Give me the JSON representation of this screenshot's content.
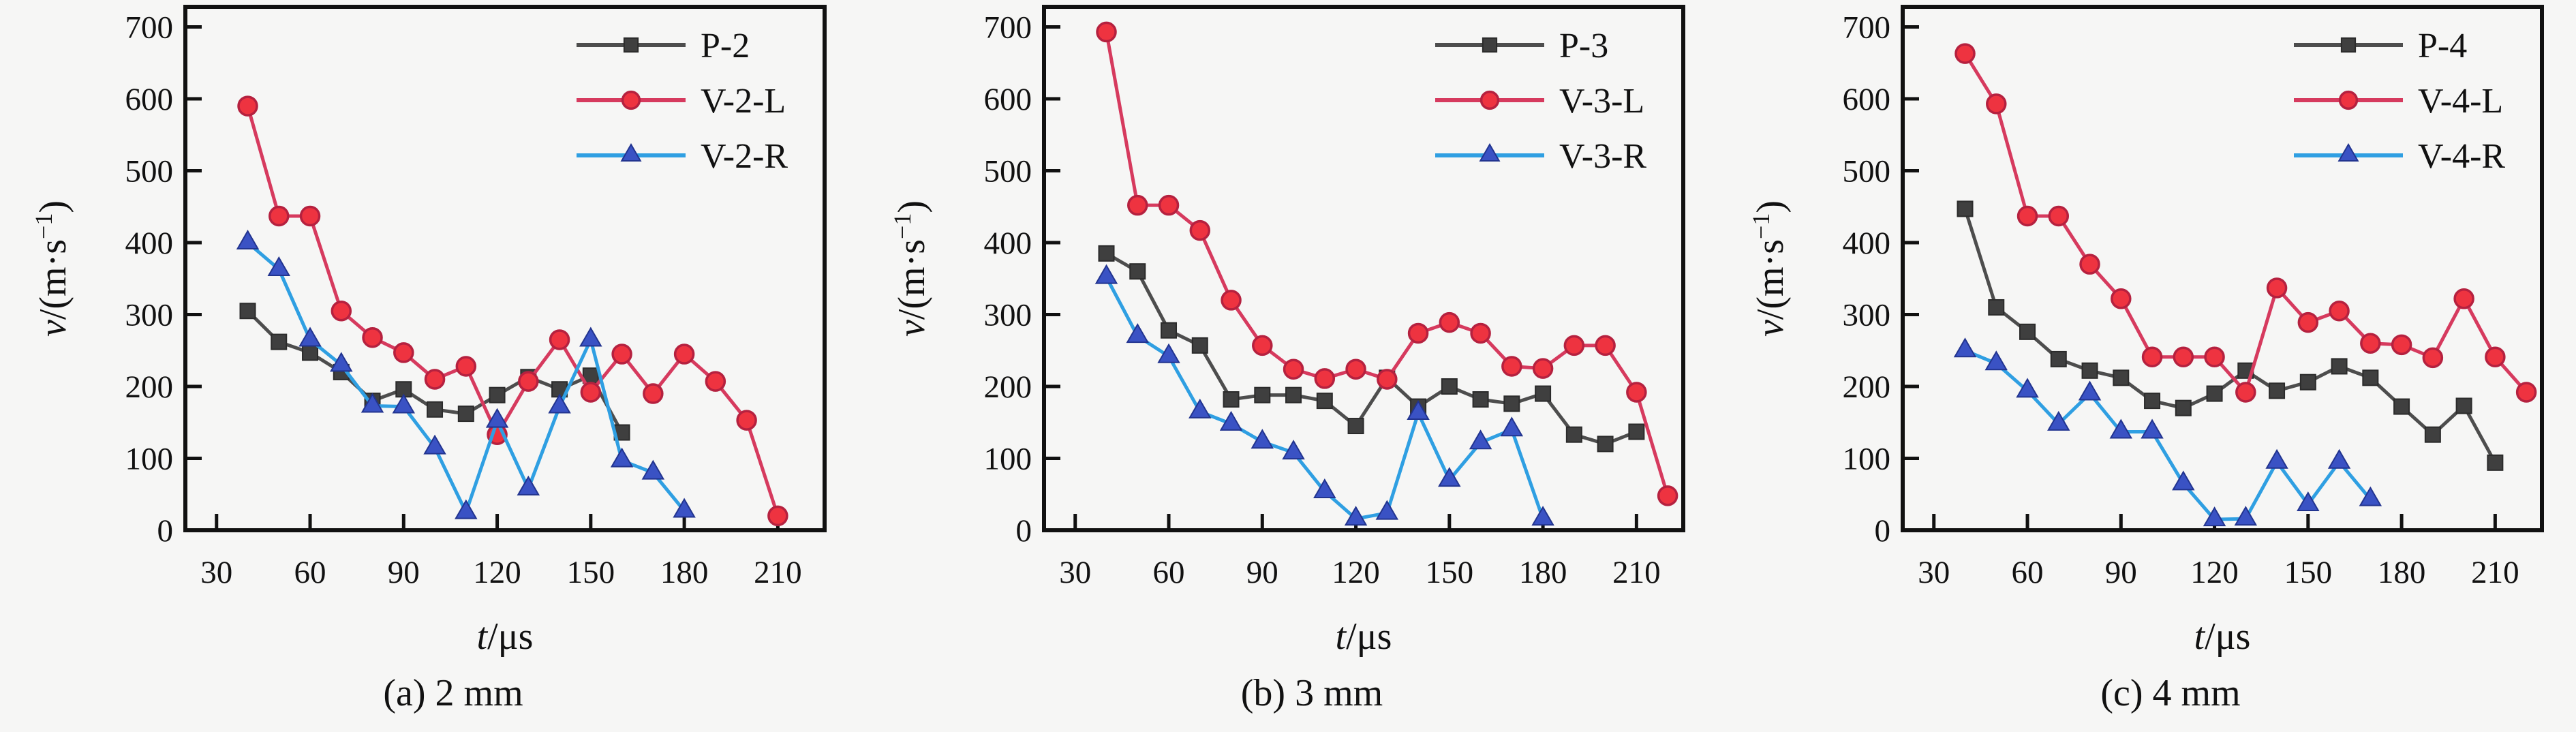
{
  "figure": {
    "background": "#f6f6f5",
    "axis_color": "#111111",
    "captions": [
      "(a) 2 mm",
      "(b) 3 mm",
      "(c) 4 mm"
    ]
  },
  "chart_data": [
    {
      "type": "line",
      "title": "(a) 2 mm",
      "xlabel": "t/μs",
      "ylabel": "v/(m·s⁻¹)",
      "xlim": [
        20,
        225
      ],
      "ylim": [
        0,
        728
      ],
      "x_ticks": [
        30,
        60,
        90,
        120,
        150,
        180,
        210
      ],
      "y_ticks": [
        0,
        100,
        200,
        300,
        400,
        500,
        600,
        700
      ],
      "grid": false,
      "legend_position": "top-right",
      "series": [
        {
          "name": "P-2",
          "marker": "square",
          "line_color": "#4d4d4d",
          "marker_color": "#3f3f3f",
          "marker_edge": "#2b2b2b",
          "x": [
            40,
            50,
            60,
            70,
            80,
            90,
            100,
            110,
            120,
            130,
            140,
            150,
            160
          ],
          "values": [
            305,
            262,
            247,
            220,
            180,
            196,
            168,
            162,
            188,
            213,
            196,
            215,
            136
          ]
        },
        {
          "name": "V-2-L",
          "marker": "circle",
          "line_color": "#d63a5e",
          "marker_color": "#ee3340",
          "marker_edge": "#b5213f",
          "x": [
            40,
            50,
            60,
            70,
            80,
            90,
            100,
            110,
            120,
            130,
            140,
            150,
            160,
            170,
            180,
            190,
            200,
            210
          ],
          "values": [
            590,
            437,
            437,
            305,
            268,
            247,
            210,
            228,
            133,
            207,
            265,
            192,
            245,
            190,
            245,
            207,
            153,
            20
          ]
        },
        {
          "name": "V-2-R",
          "marker": "triangle",
          "line_color": "#2f9fe2",
          "marker_color": "#3a52c4",
          "marker_edge": "#22348f",
          "x": [
            40,
            50,
            60,
            70,
            80,
            90,
            100,
            110,
            120,
            130,
            140,
            150,
            160,
            170,
            180
          ],
          "values": [
            400,
            363,
            265,
            230,
            173,
            172,
            115,
            25,
            152,
            58,
            172,
            265,
            97,
            80,
            27
          ]
        }
      ]
    },
    {
      "type": "line",
      "title": "(b) 3 mm",
      "xlabel": "t/μs",
      "ylabel": "v/(m·s⁻¹)",
      "xlim": [
        20,
        225
      ],
      "ylim": [
        0,
        728
      ],
      "x_ticks": [
        30,
        60,
        90,
        120,
        150,
        180,
        210
      ],
      "y_ticks": [
        0,
        100,
        200,
        300,
        400,
        500,
        600,
        700
      ],
      "grid": false,
      "legend_position": "top-right",
      "series": [
        {
          "name": "P-3",
          "marker": "square",
          "line_color": "#4d4d4d",
          "marker_color": "#3f3f3f",
          "marker_edge": "#2b2b2b",
          "x": [
            40,
            50,
            60,
            70,
            80,
            90,
            100,
            110,
            120,
            130,
            140,
            150,
            160,
            170,
            180,
            190,
            200,
            210
          ],
          "values": [
            385,
            360,
            278,
            257,
            182,
            188,
            188,
            180,
            145,
            212,
            172,
            200,
            182,
            176,
            190,
            133,
            120,
            137
          ]
        },
        {
          "name": "V-3-L",
          "marker": "circle",
          "line_color": "#d63a5e",
          "marker_color": "#ee3340",
          "marker_edge": "#b5213f",
          "x": [
            40,
            50,
            60,
            70,
            80,
            90,
            100,
            110,
            120,
            130,
            140,
            150,
            160,
            170,
            180,
            190,
            200,
            210,
            220
          ],
          "values": [
            693,
            452,
            452,
            417,
            320,
            257,
            224,
            211,
            224,
            210,
            274,
            289,
            274,
            228,
            225,
            257,
            257,
            192,
            48
          ]
        },
        {
          "name": "V-3-R",
          "marker": "triangle",
          "line_color": "#2f9fe2",
          "marker_color": "#3a52c4",
          "marker_edge": "#22348f",
          "x": [
            40,
            50,
            60,
            70,
            80,
            90,
            100,
            110,
            120,
            130,
            140,
            150,
            160,
            170,
            180
          ],
          "values": [
            352,
            270,
            242,
            165,
            148,
            123,
            108,
            54,
            16,
            24,
            163,
            70,
            122,
            140,
            16
          ]
        }
      ]
    },
    {
      "type": "line",
      "title": "(c) 4 mm",
      "xlabel": "t/μs",
      "ylabel": "v/(m·s⁻¹)",
      "xlim": [
        20,
        225
      ],
      "ylim": [
        0,
        728
      ],
      "x_ticks": [
        30,
        60,
        90,
        120,
        150,
        180,
        210
      ],
      "y_ticks": [
        0,
        100,
        200,
        300,
        400,
        500,
        600,
        700
      ],
      "grid": false,
      "legend_position": "top-right",
      "series": [
        {
          "name": "P-4",
          "marker": "square",
          "line_color": "#4d4d4d",
          "marker_color": "#3f3f3f",
          "marker_edge": "#2b2b2b",
          "x": [
            40,
            50,
            60,
            70,
            80,
            90,
            100,
            110,
            120,
            130,
            140,
            150,
            160,
            170,
            180,
            190,
            200,
            210
          ],
          "values": [
            447,
            310,
            276,
            238,
            222,
            212,
            180,
            170,
            190,
            222,
            194,
            206,
            228,
            212,
            172,
            133,
            173,
            94
          ]
        },
        {
          "name": "V-4-L",
          "marker": "circle",
          "line_color": "#d63a5e",
          "marker_color": "#ee3340",
          "marker_edge": "#b5213f",
          "x": [
            40,
            50,
            60,
            70,
            80,
            90,
            100,
            110,
            120,
            130,
            140,
            150,
            160,
            170,
            180,
            190,
            200,
            210,
            220
          ],
          "values": [
            663,
            593,
            437,
            437,
            370,
            322,
            241,
            241,
            241,
            192,
            337,
            289,
            305,
            260,
            258,
            240,
            322,
            241,
            192
          ]
        },
        {
          "name": "V-4-R",
          "marker": "triangle",
          "line_color": "#2f9fe2",
          "marker_color": "#3a52c4",
          "marker_edge": "#22348f",
          "x": [
            40,
            50,
            60,
            70,
            80,
            90,
            100,
            110,
            120,
            130,
            140,
            150,
            160,
            170
          ],
          "values": [
            250,
            232,
            194,
            148,
            190,
            137,
            137,
            65,
            15,
            16,
            95,
            36,
            95,
            43
          ]
        }
      ]
    }
  ]
}
